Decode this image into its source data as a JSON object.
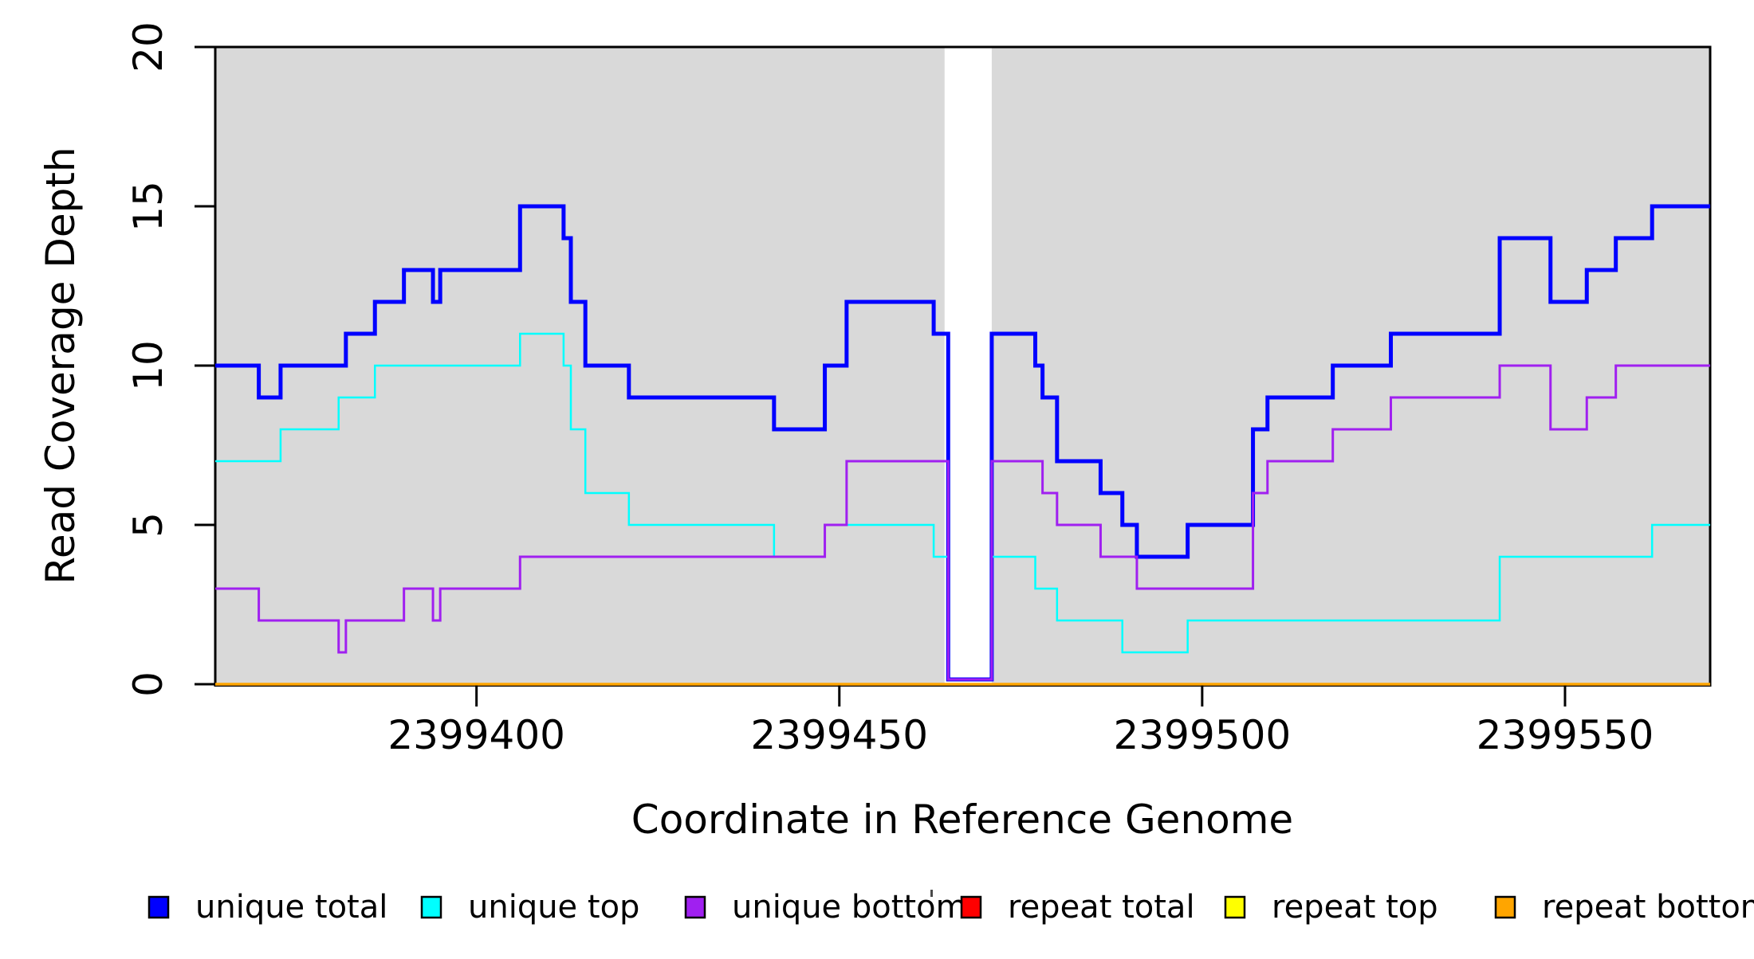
{
  "chart_data": {
    "type": "line",
    "subtype": "step-coverage",
    "title": "",
    "xlabel": "Coordinate in Reference Genome",
    "ylabel": "Read Coverage Depth",
    "xlim": [
      2399364,
      2399570
    ],
    "ylim": [
      0,
      20
    ],
    "x_ticks": [
      2399400,
      2399450,
      2399500,
      2399550
    ],
    "y_ticks": [
      0,
      5,
      10,
      15,
      20
    ],
    "grid": "off",
    "legend_position": "bottom",
    "panel_shading": {
      "color": "#D9D9D9",
      "regions": [
        [
          2399364,
          2399464.5
        ],
        [
          2399471,
          2399570
        ]
      ]
    },
    "masked_gap": {
      "x_start": 2399465,
      "x_end": 2399471
    },
    "series": [
      {
        "name": "unique total",
        "color": "#0000FF",
        "line_width": 5,
        "steps": [
          [
            2399364,
            10
          ],
          [
            2399370,
            9
          ],
          [
            2399373,
            10
          ],
          [
            2399382,
            11
          ],
          [
            2399386,
            12
          ],
          [
            2399390,
            13
          ],
          [
            2399394,
            12
          ],
          [
            2399395,
            13
          ],
          [
            2399406,
            15
          ],
          [
            2399412,
            14
          ],
          [
            2399413,
            12
          ],
          [
            2399415,
            10
          ],
          [
            2399421,
            9
          ],
          [
            2399441,
            8
          ],
          [
            2399448,
            10
          ],
          [
            2399451,
            12
          ],
          [
            2399463,
            11
          ],
          [
            2399465,
            0
          ],
          [
            2399471,
            11
          ],
          [
            2399477,
            10
          ],
          [
            2399478,
            9
          ],
          [
            2399480,
            7
          ],
          [
            2399486,
            6
          ],
          [
            2399489,
            5
          ],
          [
            2399491,
            4
          ],
          [
            2399498,
            5
          ],
          [
            2399507,
            8
          ],
          [
            2399509,
            9
          ],
          [
            2399518,
            10
          ],
          [
            2399526,
            11
          ],
          [
            2399541,
            14
          ],
          [
            2399548,
            12
          ],
          [
            2399553,
            13
          ],
          [
            2399557,
            14
          ],
          [
            2399562,
            15
          ]
        ]
      },
      {
        "name": "unique top",
        "color": "#00FFFF",
        "line_width": 2.5,
        "steps": [
          [
            2399364,
            7
          ],
          [
            2399373,
            8
          ],
          [
            2399381,
            9
          ],
          [
            2399386,
            10
          ],
          [
            2399406,
            11
          ],
          [
            2399412,
            10
          ],
          [
            2399413,
            8
          ],
          [
            2399415,
            6
          ],
          [
            2399421,
            5
          ],
          [
            2399441,
            4
          ],
          [
            2399448,
            5
          ],
          [
            2399463,
            4
          ],
          [
            2399465,
            0
          ],
          [
            2399471,
            4
          ],
          [
            2399477,
            3
          ],
          [
            2399480,
            2
          ],
          [
            2399489,
            1
          ],
          [
            2399498,
            2
          ],
          [
            2399541,
            4
          ],
          [
            2399562,
            5
          ]
        ]
      },
      {
        "name": "unique bottom",
        "color": "#A020F0",
        "line_width": 3,
        "steps": [
          [
            2399364,
            3
          ],
          [
            2399370,
            2
          ],
          [
            2399381,
            1
          ],
          [
            2399382,
            2
          ],
          [
            2399390,
            3
          ],
          [
            2399394,
            2
          ],
          [
            2399395,
            3
          ],
          [
            2399406,
            4
          ],
          [
            2399448,
            5
          ],
          [
            2399451,
            7
          ],
          [
            2399465,
            0
          ],
          [
            2399471,
            7
          ],
          [
            2399478,
            6
          ],
          [
            2399480,
            5
          ],
          [
            2399486,
            4
          ],
          [
            2399491,
            3
          ],
          [
            2399507,
            6
          ],
          [
            2399509,
            7
          ],
          [
            2399518,
            8
          ],
          [
            2399526,
            9
          ],
          [
            2399541,
            10
          ],
          [
            2399548,
            8
          ],
          [
            2399553,
            9
          ],
          [
            2399557,
            10
          ]
        ]
      },
      {
        "name": "repeat total",
        "color": "#FF0000",
        "line_width": 3,
        "steps": [
          [
            2399364,
            0
          ]
        ]
      },
      {
        "name": "repeat top",
        "color": "#FFFF00",
        "line_width": 3,
        "steps": [
          [
            2399364,
            0
          ]
        ]
      },
      {
        "name": "repeat bottom",
        "color": "#FFA500",
        "line_width": 3.5,
        "steps": [
          [
            2399364,
            0
          ]
        ]
      }
    ],
    "legend": {
      "entries": [
        {
          "label": "unique total",
          "color": "#0000FF"
        },
        {
          "label": "unique top",
          "color": "#00FFFF"
        },
        {
          "label": "unique bottom",
          "color": "#A020F0"
        },
        {
          "label": "repeat total",
          "color": "#FF0000"
        },
        {
          "label": "repeat top",
          "color": "#FFFF00"
        },
        {
          "label": "repeat bottom",
          "color": "#FFA500"
        }
      ]
    }
  }
}
